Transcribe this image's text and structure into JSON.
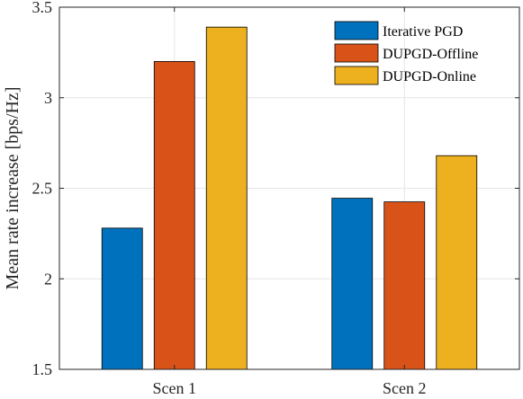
{
  "chart_data": {
    "type": "bar",
    "categories": [
      "Scen 1",
      "Scen 2"
    ],
    "series": [
      {
        "name": "Iterative PGD",
        "values": [
          2.28,
          2.445
        ],
        "color": "#0072BD"
      },
      {
        "name": "DUPGD-Offline",
        "values": [
          3.2,
          2.425
        ],
        "color": "#D95319"
      },
      {
        "name": "DUPGD-Online",
        "values": [
          3.39,
          2.68
        ],
        "color": "#EDB120"
      }
    ],
    "title": "",
    "xlabel": "",
    "ylabel": "Mean rate increase [bps/Hz]",
    "ylim": [
      1.5,
      3.5
    ],
    "yticks": [
      "1.5",
      "2",
      "2.5",
      "3",
      "3.5"
    ],
    "grid": true,
    "legend_position": "top-right"
  }
}
